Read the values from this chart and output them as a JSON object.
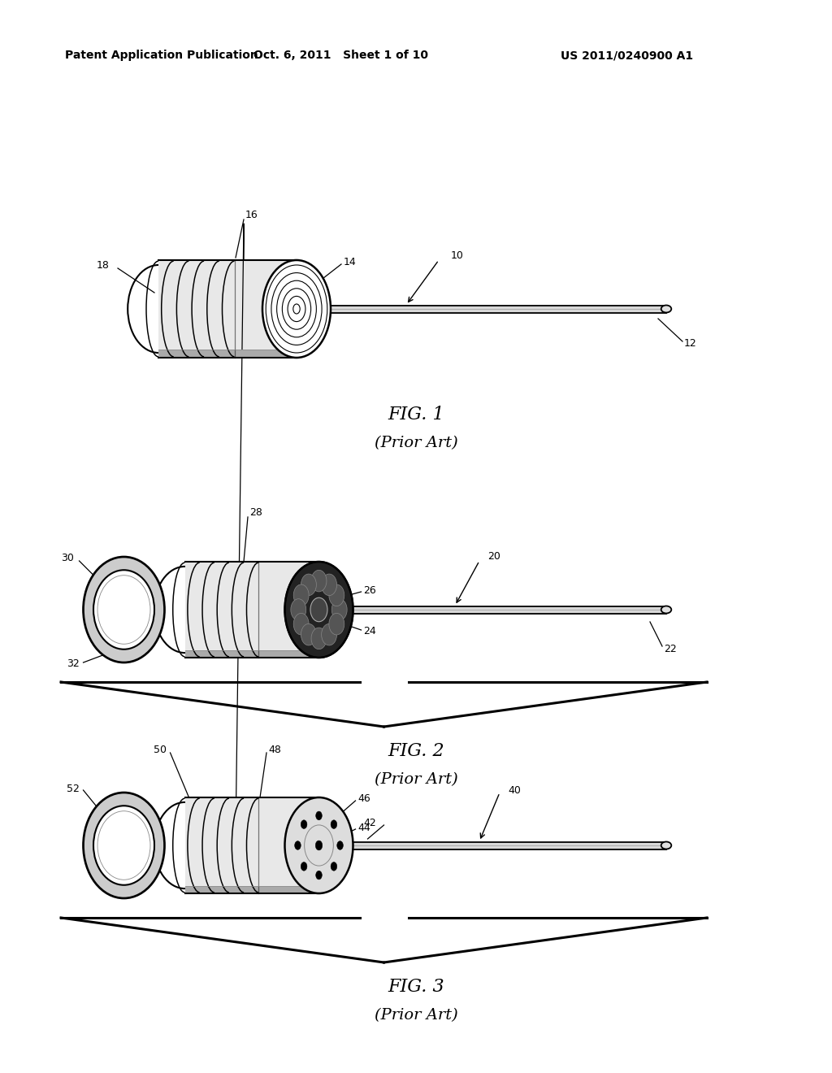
{
  "header_left": "Patent Application Publication",
  "header_mid": "Oct. 6, 2011   Sheet 1 of 10",
  "header_right": "US 2011/0240900 A1",
  "fig1_caption": "FIG. 1",
  "fig1_subcaption": "(Prior Art)",
  "fig2_caption": "FIG. 2",
  "fig2_subcaption": "(Prior Art)",
  "fig3_caption": "FIG. 3",
  "fig3_subcaption": "(Prior Art)",
  "bg_color": "#ffffff"
}
